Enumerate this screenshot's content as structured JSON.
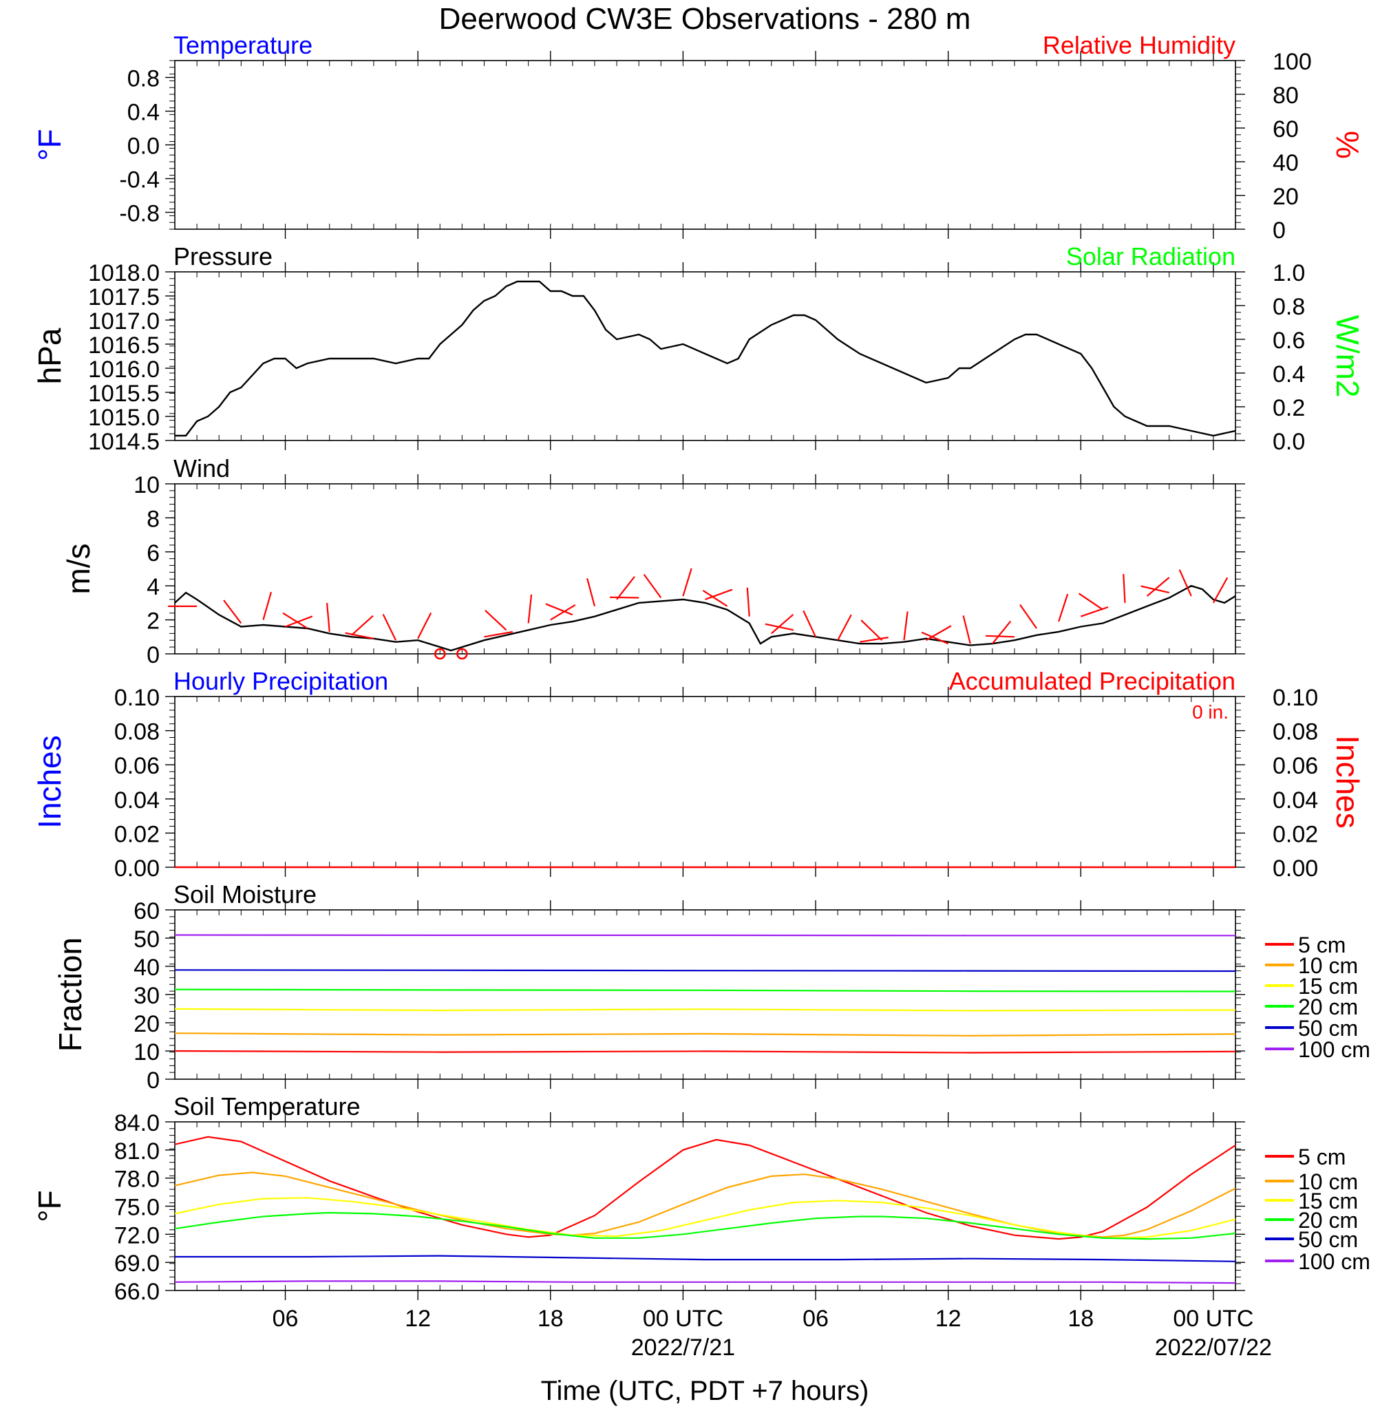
{
  "figure": {
    "title": "Deerwood CW3E Observations - 280 m",
    "xlabel": "Time (UTC, PDT +7 hours)",
    "x_ticks": [
      {
        "hour": 6,
        "label": "06",
        "sub": ""
      },
      {
        "hour": 12,
        "label": "12",
        "sub": ""
      },
      {
        "hour": 18,
        "label": "18",
        "sub": ""
      },
      {
        "hour": 24,
        "label": "00 UTC",
        "sub": "2022/7/21"
      },
      {
        "hour": 30,
        "label": "06",
        "sub": ""
      },
      {
        "hour": 36,
        "label": "12",
        "sub": ""
      },
      {
        "hour": 42,
        "label": "18",
        "sub": ""
      },
      {
        "hour": 48,
        "label": "00 UTC",
        "sub": "2022/07/22"
      }
    ]
  },
  "colors": {
    "blue": "#0000ff",
    "red": "#ff0000",
    "green": "#00ff00",
    "black": "#000000",
    "orange": "#ffa500",
    "yellow": "#ffff00",
    "navy": "#0000cc",
    "purple": "#a020f0"
  },
  "chart_data": [
    {
      "id": "temperature",
      "type": "line",
      "title_left": "Temperature",
      "title_right": "Relative Humidity",
      "ylabel_left": "°F",
      "ylabel_right": "%",
      "ylim_left": [
        -1.0,
        1.0
      ],
      "yticks_left": [
        "0.8",
        "0.4",
        "0.0",
        "-0.4",
        "-0.8"
      ],
      "ylim_right": [
        0,
        100
      ],
      "yticks_right": [
        "100",
        "80",
        "60",
        "40",
        "20",
        "0"
      ],
      "xlim": [
        1,
        49
      ],
      "series": []
    },
    {
      "id": "pressure",
      "type": "line",
      "title_left": "Pressure",
      "title_right": "Solar Radiation",
      "ylabel_left": "hPa",
      "ylabel_right": "W/m2",
      "ylim_left": [
        1014.5,
        1018.0
      ],
      "yticks_left": [
        "1018.0",
        "1017.5",
        "1017.0",
        "1016.5",
        "1016.0",
        "1015.5",
        "1015.0",
        "1014.5"
      ],
      "ylim_right": [
        0.0,
        1.0
      ],
      "yticks_right": [
        "1.0",
        "0.8",
        "0.6",
        "0.4",
        "0.2",
        "0.0"
      ],
      "xlim": [
        1,
        49
      ],
      "series": [
        {
          "color": "#000000",
          "x": [
            1,
            1.5,
            2,
            2.5,
            3,
            3.5,
            4,
            5,
            5.5,
            6,
            6.5,
            7,
            8,
            9,
            10,
            11,
            12,
            12.5,
            13,
            14,
            14.5,
            15,
            15.5,
            16,
            16.5,
            17,
            17.5,
            18,
            18.5,
            19,
            19.5,
            20,
            20.5,
            21,
            22,
            22.5,
            23,
            24,
            25,
            25.5,
            26,
            26.5,
            27,
            28,
            29,
            29.5,
            30,
            30.5,
            31,
            32,
            33,
            34,
            35,
            36,
            36.5,
            37,
            38,
            39,
            39.5,
            40,
            41,
            41.5,
            42,
            42.5,
            43,
            43.5,
            44,
            44.5,
            45,
            46,
            47,
            48,
            49
          ],
          "y": [
            1014.6,
            1014.6,
            1014.9,
            1015.0,
            1015.2,
            1015.5,
            1015.6,
            1016.1,
            1016.2,
            1016.2,
            1016.0,
            1016.1,
            1016.2,
            1016.2,
            1016.2,
            1016.1,
            1016.2,
            1016.2,
            1016.5,
            1016.9,
            1017.2,
            1017.4,
            1017.5,
            1017.7,
            1017.8,
            1017.8,
            1017.8,
            1017.6,
            1017.6,
            1017.5,
            1017.5,
            1017.2,
            1016.8,
            1016.6,
            1016.7,
            1016.6,
            1016.4,
            1016.5,
            1016.3,
            1016.2,
            1016.1,
            1016.2,
            1016.6,
            1016.9,
            1017.1,
            1017.1,
            1017.0,
            1016.8,
            1016.6,
            1016.3,
            1016.1,
            1015.9,
            1015.7,
            1015.8,
            1016.0,
            1016.0,
            1016.3,
            1016.6,
            1016.7,
            1016.7,
            1016.5,
            1016.4,
            1016.3,
            1016.0,
            1015.6,
            1015.2,
            1015.0,
            1014.9,
            1014.8,
            1014.8,
            1014.7,
            1014.6,
            1014.7
          ]
        }
      ]
    },
    {
      "id": "wind",
      "type": "line",
      "title_left": "Wind",
      "ylabel_left": "m/s",
      "ylim_left": [
        0,
        10
      ],
      "yticks_left": [
        "10",
        "8",
        "6",
        "4",
        "2",
        "0"
      ],
      "xlim": [
        1,
        49
      ],
      "series": [
        {
          "color": "#000000",
          "x": [
            1,
            1.5,
            2,
            3,
            4,
            5,
            6,
            7,
            8,
            9,
            10,
            11,
            12,
            13,
            13.5,
            14,
            14.5,
            15,
            16,
            17,
            18,
            19,
            20,
            21,
            22,
            23,
            24,
            25,
            26,
            27,
            27.5,
            28,
            29,
            30,
            31,
            32,
            33,
            34,
            35,
            36,
            37,
            38,
            39,
            40,
            41,
            42,
            43,
            44,
            45,
            46,
            47,
            47.5,
            48,
            48.5,
            49
          ],
          "y": [
            3.0,
            3.6,
            3.2,
            2.3,
            1.6,
            1.7,
            1.6,
            1.5,
            1.2,
            1.0,
            0.9,
            0.7,
            0.8,
            0.4,
            0.2,
            0.4,
            0.6,
            0.8,
            1.1,
            1.4,
            1.7,
            1.9,
            2.2,
            2.6,
            3.0,
            3.1,
            3.2,
            3.0,
            2.6,
            1.8,
            0.6,
            1.0,
            1.2,
            1.0,
            0.8,
            0.6,
            0.6,
            0.7,
            0.9,
            0.7,
            0.5,
            0.6,
            0.8,
            1.1,
            1.3,
            1.6,
            1.8,
            2.3,
            2.8,
            3.3,
            4.0,
            3.8,
            3.2,
            3.0,
            3.4
          ]
        },
        {
          "color": "#ff0000",
          "role": "wind-barbs",
          "x": [
            2,
            4,
            5,
            6,
            7,
            8,
            9,
            10,
            11,
            12,
            15,
            16,
            17,
            18,
            19,
            20,
            21,
            22,
            23,
            24,
            25,
            26,
            27,
            28,
            29,
            30,
            31,
            32,
            33,
            34,
            35,
            36,
            37,
            38,
            39,
            40,
            41,
            42,
            43,
            44,
            45,
            46,
            47,
            48
          ],
          "y": [
            2.8,
            1.8,
            2.0,
            1.6,
            1.5,
            1.3,
            1.1,
            0.9,
            0.8,
            0.9,
            1.0,
            1.4,
            1.8,
            2.0,
            2.3,
            2.8,
            3.2,
            3.3,
            3.3,
            3.4,
            3.2,
            2.8,
            2.2,
            1.2,
            1.4,
            1.0,
            0.8,
            0.7,
            0.8,
            0.8,
            0.8,
            0.6,
            0.6,
            0.6,
            1.0,
            1.5,
            1.9,
            2.2,
            2.6,
            3.0,
            3.4,
            3.6,
            3.4,
            3.0
          ]
        }
      ],
      "calm_markers": [
        {
          "x": 13,
          "y": 0
        },
        {
          "x": 14,
          "y": 0
        }
      ]
    },
    {
      "id": "precipitation",
      "type": "line",
      "title_left": "Hourly Precipitation",
      "title_right": "Accumulated Precipitation",
      "annotation": "0 in.",
      "ylabel_left": "Inches",
      "ylabel_right": "Inches",
      "ylim_left": [
        0,
        0.1
      ],
      "yticks_left": [
        "0.10",
        "0.08",
        "0.06",
        "0.04",
        "0.02",
        "0.00"
      ],
      "ylim_right": [
        0,
        0.1
      ],
      "yticks_right": [
        "0.10",
        "0.08",
        "0.06",
        "0.04",
        "0.02",
        "0.00"
      ],
      "xlim": [
        1,
        49
      ],
      "series": [
        {
          "color": "#ff0000",
          "x": [
            1,
            49
          ],
          "y": [
            0,
            0
          ]
        }
      ]
    },
    {
      "id": "soil-moisture",
      "type": "line",
      "title_left": "Soil Moisture",
      "ylabel_left": "Fraction",
      "ylim_left": [
        0,
        60
      ],
      "yticks_left": [
        "60",
        "50",
        "40",
        "30",
        "20",
        "10",
        "0"
      ],
      "xlim": [
        1,
        49
      ],
      "legend": [
        "5 cm",
        "10 cm",
        "15 cm",
        "20 cm",
        "50 cm",
        "100 cm"
      ],
      "series": [
        {
          "name": "5 cm",
          "color": "#ff0000",
          "x": [
            1,
            13,
            25,
            37,
            49
          ],
          "y": [
            10.0,
            9.6,
            9.9,
            9.4,
            9.8
          ]
        },
        {
          "name": "10 cm",
          "color": "#ffa500",
          "x": [
            1,
            13,
            25,
            37,
            49
          ],
          "y": [
            16.3,
            15.7,
            16.1,
            15.4,
            16.0
          ]
        },
        {
          "name": "15 cm",
          "color": "#ffff00",
          "x": [
            1,
            13,
            25,
            37,
            49
          ],
          "y": [
            24.9,
            24.4,
            24.8,
            24.3,
            24.5
          ]
        },
        {
          "name": "20 cm",
          "color": "#00ff00",
          "x": [
            1,
            13,
            25,
            37,
            49
          ],
          "y": [
            31.8,
            31.6,
            31.5,
            31.2,
            31.1
          ]
        },
        {
          "name": "50 cm",
          "color": "#0000cc",
          "x": [
            1,
            13,
            25,
            37,
            49
          ],
          "y": [
            38.7,
            38.6,
            38.5,
            38.4,
            38.3
          ]
        },
        {
          "name": "100 cm",
          "color": "#a020f0",
          "x": [
            1,
            13,
            25,
            37,
            49
          ],
          "y": [
            51.1,
            51.0,
            51.0,
            50.9,
            50.9
          ]
        }
      ]
    },
    {
      "id": "soil-temperature",
      "type": "line",
      "title_left": "Soil Temperature",
      "ylabel_left": "°F",
      "ylim_left": [
        66.0,
        84.0
      ],
      "yticks_left": [
        "84.0",
        "81.0",
        "78.0",
        "75.0",
        "72.0",
        "69.0",
        "66.0"
      ],
      "xlim": [
        1,
        49
      ],
      "legend": [
        "5 cm",
        "10 cm",
        "15 cm",
        "20 cm",
        "50 cm",
        "100 cm"
      ],
      "series": [
        {
          "name": "5 cm",
          "color": "#ff0000",
          "x": [
            1,
            2.5,
            4,
            6,
            8,
            10,
            12,
            14,
            16,
            17,
            18,
            20,
            22,
            24,
            25.5,
            27,
            29,
            31,
            33,
            35,
            37,
            39,
            41,
            42,
            43,
            45,
            47,
            49
          ],
          "y": [
            81.6,
            82.4,
            81.9,
            79.8,
            77.7,
            76.0,
            74.4,
            73.0,
            72.0,
            71.7,
            71.9,
            74.0,
            77.6,
            81.0,
            82.1,
            81.5,
            79.7,
            77.9,
            76.1,
            74.3,
            72.9,
            71.9,
            71.5,
            71.7,
            72.3,
            74.9,
            78.4,
            81.5
          ]
        },
        {
          "name": "10 cm",
          "color": "#ffa500",
          "x": [
            1,
            3,
            4.5,
            6,
            8,
            10,
            12,
            14,
            16,
            18,
            19,
            20,
            22,
            24,
            26,
            28,
            29.5,
            31,
            33,
            35,
            37,
            39,
            41,
            43,
            44,
            45,
            47,
            49
          ],
          "y": [
            77.2,
            78.3,
            78.6,
            78.2,
            77.0,
            75.8,
            74.6,
            73.5,
            72.6,
            72.0,
            71.9,
            72.1,
            73.3,
            75.2,
            77.0,
            78.2,
            78.4,
            77.9,
            76.8,
            75.5,
            74.2,
            73.0,
            72.1,
            71.7,
            71.9,
            72.5,
            74.5,
            76.9
          ]
        },
        {
          "name": "15 cm",
          "color": "#ffff00",
          "x": [
            1,
            3,
            5,
            7,
            9,
            11,
            13,
            15,
            17,
            19,
            21,
            23,
            25,
            27,
            29,
            31,
            33,
            35,
            37,
            39,
            41,
            43,
            45,
            47,
            49
          ],
          "y": [
            74.2,
            75.2,
            75.8,
            75.9,
            75.5,
            74.9,
            74.1,
            73.3,
            72.5,
            71.9,
            71.8,
            72.4,
            73.5,
            74.6,
            75.4,
            75.6,
            75.4,
            74.8,
            74.0,
            73.0,
            72.2,
            71.6,
            71.7,
            72.4,
            73.6
          ]
        },
        {
          "name": "20 cm",
          "color": "#00ff00",
          "x": [
            1,
            3,
            5,
            7,
            8,
            10,
            12,
            14,
            16,
            18,
            20,
            22,
            24,
            26,
            28,
            30,
            32,
            33,
            35,
            37,
            39,
            41,
            43,
            45,
            47,
            49
          ],
          "y": [
            72.6,
            73.3,
            73.9,
            74.2,
            74.3,
            74.2,
            73.9,
            73.4,
            72.8,
            72.1,
            71.6,
            71.6,
            72.0,
            72.6,
            73.2,
            73.7,
            73.9,
            73.9,
            73.7,
            73.2,
            72.6,
            72.0,
            71.6,
            71.5,
            71.6,
            72.1
          ]
        },
        {
          "name": "50 cm",
          "color": "#0000cc",
          "x": [
            1,
            7,
            13,
            19,
            25,
            31,
            37,
            43,
            49
          ],
          "y": [
            69.6,
            69.6,
            69.7,
            69.5,
            69.3,
            69.3,
            69.4,
            69.3,
            69.1
          ]
        },
        {
          "name": "100 cm",
          "color": "#a020f0",
          "x": [
            1,
            7,
            13,
            19,
            25,
            31,
            37,
            43,
            49
          ],
          "y": [
            66.9,
            67.0,
            67.0,
            66.9,
            66.9,
            66.9,
            66.9,
            66.9,
            66.8
          ]
        }
      ]
    }
  ]
}
